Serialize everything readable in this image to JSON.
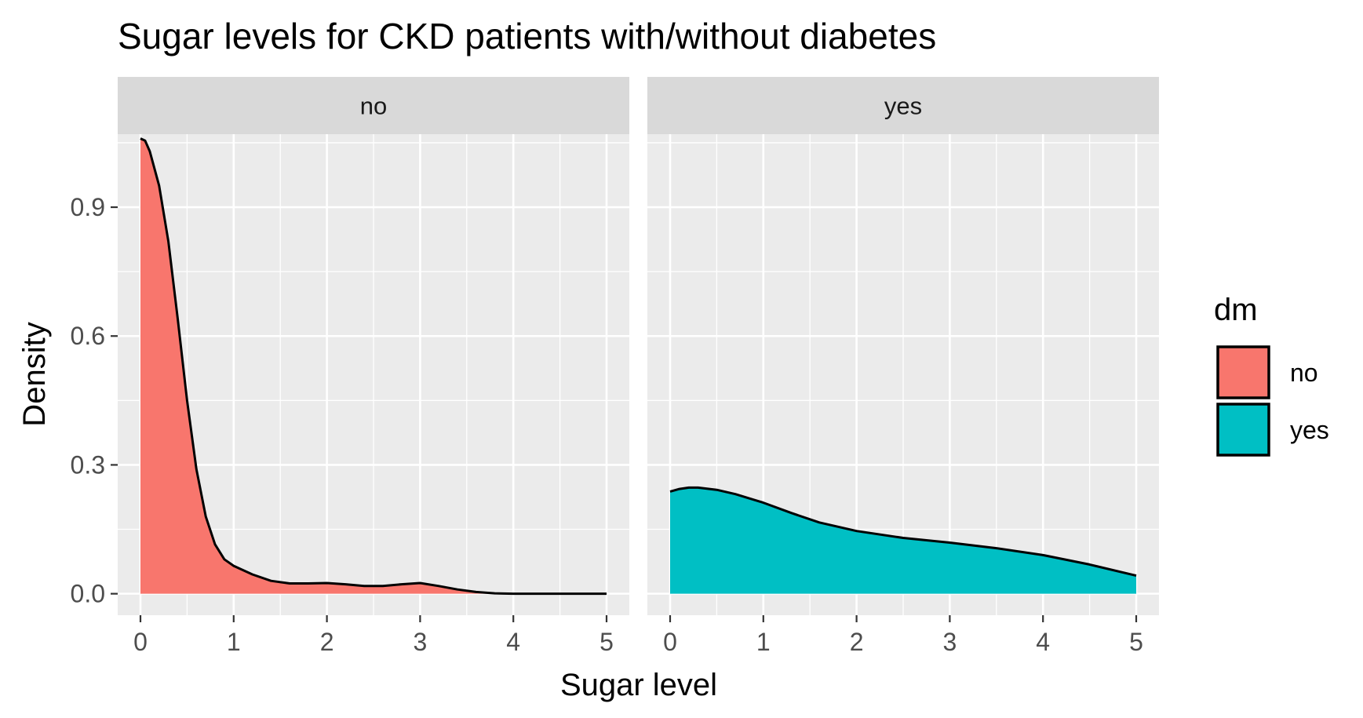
{
  "chart_data": {
    "type": "area",
    "title": "Sugar levels for CKD patients with/without diabetes",
    "xlabel": "Sugar level",
    "ylabel": "Density",
    "xlim": [
      0,
      5
    ],
    "ylim": [
      -0.05,
      1.07
    ],
    "x_ticks": [
      0,
      1,
      2,
      3,
      4,
      5
    ],
    "y_ticks": [
      0.0,
      0.3,
      0.6,
      0.9
    ],
    "y_tick_labels": [
      "0.0",
      "0.3",
      "0.6",
      "0.9"
    ],
    "grid": true,
    "legend": {
      "title": "dm",
      "position": "right",
      "entries": [
        {
          "label": "no",
          "color": "#F8766D"
        },
        {
          "label": "yes",
          "color": "#00BFC4"
        }
      ]
    },
    "panels": [
      {
        "strip": "no",
        "fill": "#F8766D",
        "x": [
          0,
          0.05,
          0.1,
          0.2,
          0.3,
          0.4,
          0.5,
          0.6,
          0.7,
          0.8,
          0.9,
          1.0,
          1.2,
          1.4,
          1.6,
          1.8,
          2.0,
          2.2,
          2.4,
          2.6,
          2.8,
          3.0,
          3.2,
          3.4,
          3.6,
          3.8,
          4.0,
          4.5,
          5.0
        ],
        "y": [
          1.06,
          1.055,
          1.03,
          0.95,
          0.82,
          0.64,
          0.45,
          0.29,
          0.18,
          0.115,
          0.08,
          0.065,
          0.045,
          0.03,
          0.024,
          0.024,
          0.025,
          0.022,
          0.018,
          0.018,
          0.022,
          0.025,
          0.018,
          0.01,
          0.004,
          0.001,
          0.0,
          0.0,
          0.0
        ]
      },
      {
        "strip": "yes",
        "fill": "#00BFC4",
        "x": [
          0,
          0.1,
          0.2,
          0.3,
          0.5,
          0.7,
          1.0,
          1.3,
          1.6,
          2.0,
          2.5,
          3.0,
          3.5,
          4.0,
          4.5,
          5.0
        ],
        "y": [
          0.238,
          0.244,
          0.247,
          0.247,
          0.242,
          0.232,
          0.212,
          0.188,
          0.166,
          0.146,
          0.13,
          0.119,
          0.106,
          0.09,
          0.068,
          0.042
        ]
      }
    ]
  }
}
